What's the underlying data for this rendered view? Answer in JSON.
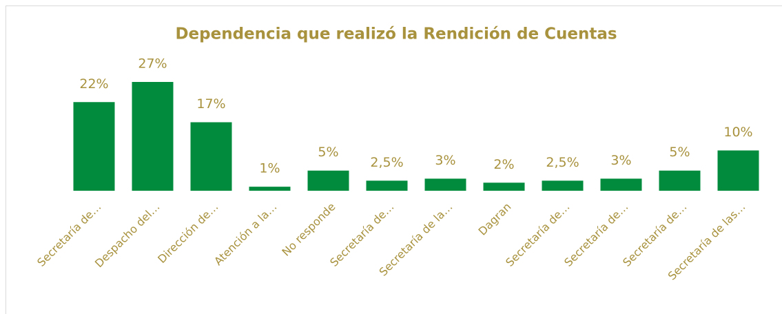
{
  "chart_data": {
    "type": "bar",
    "title": "Dependencia que realizó la Rendición de Cuentas",
    "categories": [
      "Secretaría de…",
      "Despacho del…",
      "Dirección de…",
      "Atención a la…",
      "No responde",
      "Secretaría de…",
      "Secretaría de la…",
      "Dagran",
      "Secretaría de…",
      "Secretaría de…",
      "Secretaría de…",
      "Secretaría de las…"
    ],
    "values": [
      22,
      27,
      17,
      1,
      5,
      2.5,
      3,
      2,
      2.5,
      3,
      5,
      10
    ],
    "value_labels": [
      "22%",
      "27%",
      "17%",
      "1%",
      "5%",
      "2,5%",
      "3%",
      "2%",
      "2,5%",
      "3%",
      "5%",
      "10%"
    ],
    "color": "#008c3c",
    "ylim": [
      0,
      27
    ]
  }
}
